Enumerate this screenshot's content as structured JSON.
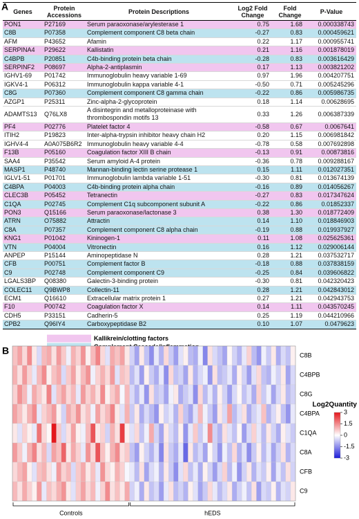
{
  "panel_a": {
    "label": "A",
    "table": {
      "columns": [
        "Genes",
        "Protein Accessions",
        "Protein Descriptions",
        "Log2 Fold Change",
        "Fold Change",
        "P-Value"
      ],
      "rows": [
        {
          "cells": [
            "PON1",
            "P27169",
            "Serum paraoxonase/arylesterase 1",
            "0.75",
            "1.68",
            "0.000338743"
          ],
          "highlight": "#f1c6ef"
        },
        {
          "cells": [
            "C8B",
            "P07358",
            "Complement component C8 beta chain",
            "-0.27",
            "0.83",
            "0.000459621"
          ],
          "highlight": "#bde3ef"
        },
        {
          "cells": [
            "AFM",
            "P43652",
            "Afamin",
            "0.22",
            "1.17",
            "0.000955741"
          ]
        },
        {
          "cells": [
            "SERPINA4",
            "P29622",
            "Kallistatin",
            "0.21",
            "1.16",
            "0.001878019"
          ],
          "highlight": "#f1c6ef"
        },
        {
          "cells": [
            "C4BPB",
            "P20851",
            "C4b-binding protein beta chain",
            "-0.28",
            "0.83",
            "0.003616429"
          ],
          "highlight": "#bde3ef"
        },
        {
          "cells": [
            "SERPINF2",
            "P08697",
            "Alpha-2-antiplasmin",
            "0.17",
            "1.13",
            "0.003821202"
          ],
          "highlight": "#f1c6ef"
        },
        {
          "cells": [
            "IGHV1-69",
            "P01742",
            "Immunoglobulin heavy variable 1-69",
            "0.97",
            "1.96",
            "0.004207751"
          ]
        },
        {
          "cells": [
            "IGKV4-1",
            "P06312",
            "Immunoglobulin kappa variable 4-1",
            "-0.50",
            "0.71",
            "0.005245296"
          ]
        },
        {
          "cells": [
            "C8G",
            "P07360",
            "Complement component C8 gamma chain",
            "-0.22",
            "0.86",
            "0.005986735"
          ],
          "highlight": "#bde3ef"
        },
        {
          "cells": [
            "AZGP1",
            "P25311",
            "Zinc-alpha-2-glycoprotein",
            "0.18",
            "1.14",
            "0.00628695"
          ]
        },
        {
          "cells": [
            "ADAMTS13",
            "Q76LX8",
            "A disintegrin and metalloproteinase with thrombospondin motifs 13",
            "0.33",
            "1.26",
            "0.006387339"
          ]
        },
        {
          "cells": [
            "PF4",
            "P02776",
            "Platelet factor 4",
            "-0.58",
            "0.67",
            "0.0067641"
          ],
          "highlight": "#f1c6ef"
        },
        {
          "cells": [
            "ITIH2",
            "P19823",
            "Inter-alpha-trypsin inhibitor heavy chain H2",
            "0.20",
            "1.15",
            "0.006981842"
          ]
        },
        {
          "cells": [
            "IGHV4-4",
            "A0A075B6R2",
            "Immunoglobulin heavy variable 4-4",
            "-0.78",
            "0.58",
            "0.007692898"
          ]
        },
        {
          "cells": [
            "F13B",
            "P05160",
            "Coagulation factor XIII B chain",
            "-0.13",
            "0.91",
            "0.00873816"
          ],
          "highlight": "#f1c6ef"
        },
        {
          "cells": [
            "SAA4",
            "P35542",
            "Serum amyloid A-4 protein",
            "-0.36",
            "0.78",
            "0.009288167"
          ]
        },
        {
          "cells": [
            "MASP1",
            "P48740",
            "Mannan-binding lectin serine protease 1",
            "0.15",
            "1.11",
            "0.012027351"
          ],
          "highlight": "#bde3ef"
        },
        {
          "cells": [
            "IGLV1-51",
            "P01701",
            "Immunoglobulin lambda variable 1-51",
            "-0.30",
            "0.81",
            "0.013674139"
          ]
        },
        {
          "cells": [
            "C4BPA",
            "P04003",
            "C4b-binding protein alpha chain",
            "-0.16",
            "0.89",
            "0.014056267"
          ],
          "highlight": "#bde3ef"
        },
        {
          "cells": [
            "CLEC3B",
            "P05452",
            "Tetranectin",
            "-0.27",
            "0.83",
            "0.017347624"
          ],
          "highlight": "#f1c6ef"
        },
        {
          "cells": [
            "C1QA",
            "P02745",
            "Complement C1q subcomponent subunit A",
            "-0.22",
            "0.86",
            "0.01852337"
          ],
          "highlight": "#bde3ef"
        },
        {
          "cells": [
            "PON3",
            "Q15166",
            "Serum paraoxonase/lactonase 3",
            "0.38",
            "1.30",
            "0.018772409"
          ],
          "highlight": "#f1c6ef"
        },
        {
          "cells": [
            "ATRN",
            "O75882",
            "Attractin",
            "0.14",
            "1.10",
            "0.018846903"
          ],
          "highlight": "#bde3ef"
        },
        {
          "cells": [
            "C8A",
            "P07357",
            "Complement component C8 alpha chain",
            "-0.19",
            "0.88",
            "0.019937927"
          ],
          "highlight": "#bde3ef"
        },
        {
          "cells": [
            "KNG1",
            "P01042",
            "Kininogen-1",
            "0.11",
            "1.08",
            "0.025625361"
          ],
          "highlight": "#f1c6ef"
        },
        {
          "cells": [
            "VTN",
            "P04004",
            "Vitronectin",
            "0.16",
            "1.12",
            "0.029006144"
          ],
          "highlight": "#bde3ef"
        },
        {
          "cells": [
            "ANPEP",
            "P15144",
            "Aminopeptidase N",
            "0.28",
            "1.21",
            "0.037532717"
          ]
        },
        {
          "cells": [
            "CFB",
            "P00751",
            "Complement factor B",
            "-0.18",
            "0.88",
            "0.037838159"
          ],
          "highlight": "#bde3ef"
        },
        {
          "cells": [
            "C9",
            "P02748",
            "Complement component C9",
            "-0.25",
            "0.84",
            "0.039606822"
          ],
          "highlight": "#bde3ef"
        },
        {
          "cells": [
            "LGALS3BP",
            "Q08380",
            "Galectin-3-binding protein",
            "-0.30",
            "0.81",
            "0.042320423"
          ]
        },
        {
          "cells": [
            "COLEC11",
            "Q9BWP8",
            "Collectin-11",
            "0.28",
            "1.21",
            "0.042843012"
          ],
          "highlight": "#bde3ef"
        },
        {
          "cells": [
            "ECM1",
            "Q16610",
            "Extracellular matrix protein 1",
            "0.27",
            "1.21",
            "0.042943753"
          ]
        },
        {
          "cells": [
            "F10",
            "P00742",
            "Coagulation factor X",
            "0.14",
            "1.11",
            "0.043570245"
          ],
          "highlight": "#f1c6ef"
        },
        {
          "cells": [
            "CDH5",
            "P33151",
            "Cadherin-5",
            "0.25",
            "1.19",
            "0.044210966"
          ]
        },
        {
          "cells": [
            "CPB2",
            "Q96IY4",
            "Carboxypeptidase B2",
            "0.10",
            "1.07",
            "0.0479623"
          ],
          "highlight": "#bde3ef"
        }
      ]
    },
    "legend": [
      {
        "label": "Kallikrein/clotting factors",
        "color": "#f1c6ef"
      },
      {
        "label": "Complement Cascade/inflammation",
        "color": "#bde3ef"
      }
    ]
  },
  "panel_b": {
    "label": "B",
    "heatmap": {
      "groups": [
        "Controls",
        "hEDS"
      ],
      "rows": [
        {
          "name": "C8B",
          "values": [
            [
              0.8,
              1.2,
              0.5,
              1.5,
              0.3,
              -0.5,
              0.9,
              1.1,
              0.4,
              1.3,
              0.7,
              -0.2,
              1.0,
              0.6,
              1.4,
              0.2,
              0.9,
              1.6,
              0.5,
              -0.4,
              1.1,
              0.8,
              1.2,
              0.3
            ],
            [
              -0.6,
              -1.2,
              0.3,
              -0.8,
              -1.5,
              -0.3,
              -1.0,
              0.5,
              -0.7,
              -1.3,
              -0.4,
              0.2,
              -0.9,
              -1.1,
              -0.2,
              -1.6,
              0.4,
              -0.5,
              -0.8,
              -1.2,
              0.1,
              -0.6,
              -1.0,
              -0.3,
              0.6,
              -0.9,
              -1.4,
              -0.2,
              -0.7,
              0.3,
              -1.1,
              -0.5,
              -0.8,
              0.2
            ]
          ]
        },
        {
          "name": "C4BPB",
          "values": [
            [
              1.0,
              0.4,
              1.3,
              0.6,
              -0.3,
              0.9,
              1.5,
              0.2,
              0.8,
              1.1,
              -0.5,
              0.7,
              1.2,
              0.3,
              0.9,
              1.4,
              -0.2,
              0.6,
              1.0,
              0.5,
              1.3,
              -0.4,
              0.8,
              0.6
            ],
            [
              -0.9,
              -0.4,
              -1.3,
              0.2,
              -0.7,
              -1.1,
              -0.3,
              -1.5,
              0.5,
              -0.8,
              -0.6,
              -1.2,
              0.3,
              -1.0,
              -0.5,
              -0.2,
              -1.4,
              0.4,
              -0.9,
              -0.7,
              -0.3,
              -1.1,
              0.2,
              -0.6,
              -1.3,
              -0.4,
              0.5,
              -0.8,
              -1.0,
              -0.2,
              -0.6,
              0.3,
              -1.2,
              -0.5
            ]
          ]
        },
        {
          "name": "C8G",
          "values": [
            [
              0.6,
              1.4,
              0.9,
              -0.2,
              1.1,
              0.7,
              0.3,
              1.6,
              -0.4,
              0.8,
              1.2,
              0.5,
              0.9,
              -0.3,
              1.3,
              0.6,
              1.0,
              0.4,
              1.5,
              0.2,
              0.7,
              1.1,
              -0.1,
              0.9
            ],
            [
              -0.5,
              -1.0,
              -0.3,
              -1.4,
              0.4,
              -0.8,
              -0.6,
              -1.2,
              -0.2,
              0.3,
              -1.1,
              -0.7,
              -0.4,
              -1.5,
              0.5,
              -0.9,
              -0.3,
              -1.0,
              0.2,
              -0.6,
              -1.3,
              -0.5,
              0.1,
              -0.8,
              -0.4,
              -1.1,
              0.6,
              -0.7,
              -0.2,
              -1.2,
              -0.5,
              0.3,
              -0.9,
              -0.6
            ]
          ]
        },
        {
          "name": "C4BPA",
          "values": [
            [
              1.2,
              0.8,
              0.3,
              1.0,
              1.5,
              -0.3,
              0.6,
              0.9,
              1.3,
              0.2,
              -0.6,
              1.1,
              0.7,
              1.4,
              0.4,
              0.8,
              -0.2,
              1.2,
              0.5,
              0.9,
              1.6,
              0.3,
              -0.4,
              1.0
            ],
            [
              -0.7,
              0.3,
              -1.1,
              -0.5,
              -0.9,
              -1.4,
              0.2,
              -0.6,
              -0.3,
              -1.0,
              0.6,
              -0.8,
              -1.2,
              -0.4,
              0.9,
              -0.2,
              -0.7,
              -1.3,
              0.3,
              -0.5,
              1.2,
              -0.9,
              -0.4,
              0.4,
              -1.1,
              -0.6,
              -0.3,
              0.8,
              -1.0,
              -0.5,
              0.2,
              -0.8,
              -1.4,
              -0.3
            ]
          ]
        },
        {
          "name": "C1QA",
          "values": [
            [
              0.3,
              -0.4,
              0.6,
              0.2,
              -0.3,
              1.8,
              0.5,
              0.1,
              3.0,
              0.7,
              -0.5,
              0.4,
              1.2,
              0.2,
              -0.2,
              0.9,
              2.2,
              0.3,
              0.6,
              -0.6,
              1.0,
              0.4,
              2.5,
              0.2
            ],
            [
              -0.4,
              0.5,
              -0.8,
              -0.2,
              1.1,
              -0.6,
              -1.2,
              0.3,
              -0.5,
              -0.9,
              0.2,
              -1.4,
              -0.3,
              0.7,
              -0.7,
              -0.2,
              1.5,
              -0.6,
              -1.0,
              0.4,
              -0.4,
              -0.8,
              0.1,
              -1.3,
              -0.5,
              0.6,
              -0.3,
              -0.9,
              0.3,
              -0.6,
              -1.1,
              0.2,
              -0.4,
              -0.7
            ]
          ]
        },
        {
          "name": "C8A",
          "values": [
            [
              1.3,
              0.7,
              -0.2,
              1.0,
              1.6,
              0.4,
              0.9,
              -0.5,
              1.2,
              0.8,
              2.0,
              0.3,
              1.1,
              0.6,
              -0.3,
              1.4,
              0.5,
              2.2,
              0.8,
              0.2,
              1.0,
              1.5,
              0.4,
              0.7
            ],
            [
              -0.8,
              -1.3,
              0.2,
              -0.6,
              -1.0,
              -0.4,
              -1.6,
              0.4,
              -0.7,
              -1.1,
              -0.3,
              -2.0,
              0.3,
              -0.9,
              -0.5,
              -1.2,
              0.1,
              -0.6,
              -1.4,
              -0.2,
              -0.8,
              0.5,
              -1.0,
              -0.4,
              -1.5,
              -0.7,
              0.2,
              -0.9,
              -0.3,
              -1.2,
              -0.6,
              0.4,
              -1.0,
              -0.5
            ]
          ]
        },
        {
          "name": "CFB",
          "values": [
            [
              0.5,
              0.9,
              1.2,
              0.2,
              -0.4,
              0.8,
              1.0,
              0.4,
              -0.2,
              1.3,
              0.6,
              0.9,
              -0.5,
              0.7,
              1.1,
              0.3,
              0.8,
              -0.3,
              1.4,
              0.5,
              0.2,
              1.0,
              0.6,
              -0.1
            ],
            [
              -0.3,
              -0.9,
              0.4,
              -1.2,
              -0.5,
              -0.2,
              -1.0,
              0.3,
              -0.7,
              -1.5,
              -0.4,
              0.5,
              -0.8,
              -0.3,
              -1.1,
              0.2,
              -0.6,
              -1.3,
              -0.5,
              0.6,
              -0.9,
              -0.2,
              -1.4,
              -0.6,
              0.3,
              -1.0,
              -0.4,
              -0.7,
              0.2,
              -1.2,
              -0.3,
              -0.8,
              0.4,
              -0.6
            ]
          ]
        },
        {
          "name": "C9",
          "values": [
            [
              0.9,
              0.4,
              1.1,
              0.6,
              0.2,
              1.3,
              -0.3,
              0.8,
              0.5,
              1.0,
              1.4,
              0.3,
              -0.4,
              0.7,
              1.2,
              0.5,
              0.9,
              -0.2,
              0.6,
              1.5,
              0.4,
              0.8,
              0.3,
              1.1
            ],
            [
              -0.6,
              -0.2,
              -1.1,
              0.3,
              -0.8,
              -0.5,
              -1.3,
              -0.3,
              0.4,
              -0.9,
              -0.6,
              -1.0,
              0.2,
              -0.4,
              -1.2,
              -0.7,
              0.5,
              -0.3,
              -0.9,
              -0.5,
              0.3,
              -1.1,
              -0.6,
              -0.2,
              -0.8,
              0.4,
              -1.3,
              -0.5,
              -0.7,
              0.2,
              -1.0,
              -0.4,
              -0.6,
              0.3
            ]
          ]
        }
      ],
      "colorbar": {
        "title": "Log2Quantity",
        "lim": [
          -3,
          3
        ],
        "ticks": [
          3,
          1.5,
          0,
          -1.5,
          -3
        ],
        "colors": [
          "#1c1cd8",
          "#ffffff",
          "#e4171c"
        ]
      }
    }
  }
}
